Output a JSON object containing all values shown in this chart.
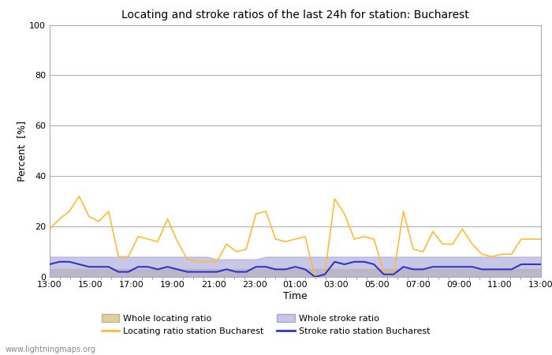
{
  "title": "Locating and stroke ratios of the last 24h for station: Bucharest",
  "xlabel": "Time",
  "ylabel": "Percent  [%]",
  "ylim": [
    0,
    100
  ],
  "yticks": [
    0,
    20,
    40,
    60,
    80,
    100
  ],
  "yticks_minor": [
    10,
    30,
    50,
    70,
    90
  ],
  "watermark": "www.lightningmaps.org",
  "x_labels": [
    "13:00",
    "15:00",
    "17:00",
    "19:00",
    "21:00",
    "23:00",
    "01:00",
    "03:00",
    "05:00",
    "07:00",
    "09:00",
    "11:00",
    "13:00"
  ],
  "background_color": "#ffffff",
  "plot_bg_color": "#ffffff",
  "locating_line_color": "#ffbb33",
  "stroke_line_color": "#3333cc",
  "locating_fill_color": "#d8c890",
  "stroke_fill_color": "#aaaadd",
  "locating_station": [
    19,
    23,
    26,
    32,
    24,
    22,
    26,
    8,
    8,
    16,
    15,
    14,
    23,
    14,
    7,
    6,
    6,
    6,
    13,
    10,
    11,
    25,
    26,
    15,
    14,
    15,
    16,
    0,
    1,
    31,
    25,
    15,
    16,
    15,
    2,
    1,
    26,
    11,
    10,
    18,
    13,
    13,
    19,
    13,
    9,
    8,
    9,
    9,
    15,
    15,
    15
  ],
  "stroke_station": [
    5,
    6,
    6,
    5,
    4,
    4,
    4,
    2,
    2,
    4,
    4,
    3,
    4,
    3,
    2,
    2,
    2,
    2,
    3,
    2,
    2,
    4,
    4,
    3,
    3,
    4,
    3,
    0,
    1,
    6,
    5,
    6,
    6,
    5,
    1,
    1,
    4,
    3,
    3,
    4,
    4,
    4,
    4,
    4,
    3,
    3,
    3,
    3,
    5,
    5,
    5
  ],
  "locating_whole": [
    3,
    3,
    3,
    3,
    3,
    3,
    3,
    3,
    3,
    3,
    3,
    3,
    3,
    3,
    3,
    3,
    3,
    3,
    3,
    3,
    3,
    3,
    3,
    3,
    3,
    3,
    3,
    3,
    3,
    3,
    3,
    3,
    3,
    3,
    3,
    3,
    3,
    3,
    3,
    3,
    3,
    3,
    3,
    3,
    3,
    3,
    3,
    3,
    3,
    3,
    3
  ],
  "stroke_whole": [
    8,
    8,
    8,
    8,
    8,
    8,
    8,
    8,
    8,
    8,
    8,
    8,
    8,
    8,
    8,
    8,
    8,
    7,
    7,
    7,
    7,
    7,
    8,
    8,
    8,
    8,
    8,
    8,
    8,
    8,
    8,
    8,
    8,
    8,
    8,
    8,
    8,
    8,
    8,
    8,
    8,
    8,
    8,
    8,
    8,
    8,
    8,
    8,
    8,
    8,
    8
  ]
}
